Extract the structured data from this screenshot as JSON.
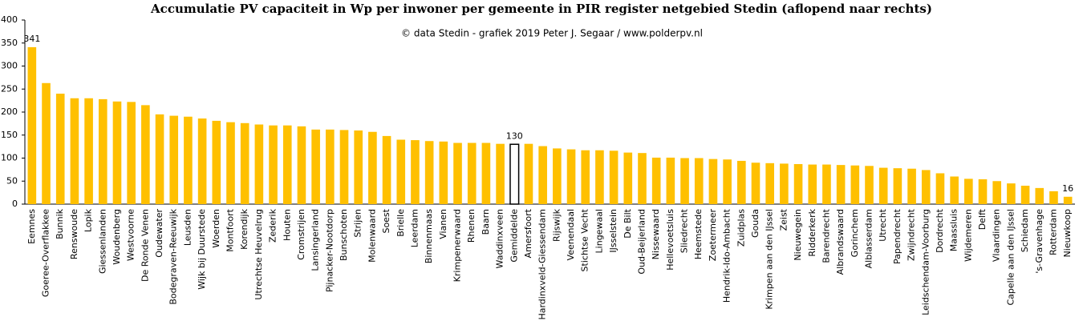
{
  "chart_data": {
    "type": "bar",
    "title": "Accumulatie  PV capaciteit  in  Wp per inwoner per gemeente in PIR register netgebied Stedin (aflopend naar rechts)",
    "subtitle": "© data Stedin - grafiek  2019 Peter J. Segaar / www.polderpv.nl",
    "categories": [
      "Eemnes",
      "Goeree-Overflakkee",
      "Bunnik",
      "Renswoude",
      "Lopik",
      "Giessenlanden",
      "Woudenberg",
      "Westvoorne",
      "De Ronde Venen",
      "Oudewater",
      "Bodegraven-Reeuwijk",
      "Leusden",
      "Wijk bij Duurstede",
      "Woerden",
      "Montfoort",
      "Korendijk",
      "Utrechtse Heuvelrug",
      "Zederik",
      "Houten",
      "Cromstrijen",
      "Lansingerland",
      "Pijnacker-Nootdorp",
      "Bunschoten",
      "Strijen",
      "Molenwaard",
      "Soest",
      "Brielle",
      "Leerdam",
      "Binnenmaas",
      "Vianen",
      "Krimpenerwaard",
      "Rhenen",
      "Baarn",
      "Waddinxveen",
      "Gemiddelde",
      "Amersfoort",
      "Hardinxveld-Giessendam",
      "Rijswijk",
      "Veenendaal",
      "Stichtse Vecht",
      "Lingewaal",
      "IJsselstein",
      "De Bilt",
      "Oud-Beijerland",
      "Nissewaard",
      "Hellevoetsluis",
      "Sliedrecht",
      "Heemstede",
      "Zoetermeer",
      "Hendrik-Ido-Ambacht",
      "Zuidplas",
      "Gouda",
      "Krimpen aan den IJssel",
      "Zeist",
      "Nieuwegein",
      "Ridderkerk",
      "Barendrecht",
      "Albrandswaard",
      "Gorinchem",
      "Alblasserdam",
      "Utrecht",
      "Papendrecht",
      "Zwijndrecht",
      "Leidschendam-Voorburg",
      "Dordrecht",
      "Maassluis",
      "Wijdemeren",
      "Delft",
      "Vlaardingen",
      "Capelle aan den IJssel",
      "Schiedam",
      "'s-Gravenhage",
      "Rotterdam",
      "Nieuwkoop"
    ],
    "values": [
      341,
      263,
      240,
      230,
      230,
      228,
      223,
      222,
      215,
      195,
      192,
      190,
      186,
      181,
      178,
      176,
      173,
      171,
      171,
      169,
      162,
      162,
      161,
      160,
      157,
      148,
      140,
      139,
      137,
      136,
      133,
      133,
      133,
      131,
      130,
      131,
      126,
      121,
      119,
      117,
      117,
      116,
      112,
      111,
      101,
      101,
      100,
      100,
      98,
      97,
      94,
      90,
      89,
      88,
      87,
      86,
      86,
      85,
      84,
      83,
      79,
      78,
      77,
      74,
      67,
      60,
      55,
      54,
      50,
      45,
      40,
      35,
      28,
      16
    ],
    "value_labels": [
      "341",
      null,
      null,
      null,
      null,
      null,
      null,
      null,
      null,
      null,
      null,
      null,
      null,
      null,
      null,
      null,
      null,
      null,
      null,
      null,
      null,
      null,
      null,
      null,
      null,
      null,
      null,
      null,
      null,
      null,
      null,
      null,
      null,
      null,
      "130",
      null,
      null,
      null,
      null,
      null,
      null,
      null,
      null,
      null,
      null,
      null,
      null,
      null,
      null,
      null,
      null,
      null,
      null,
      null,
      null,
      null,
      null,
      null,
      null,
      null,
      null,
      null,
      null,
      null,
      null,
      null,
      null,
      null,
      null,
      null,
      null,
      null,
      null,
      "16"
    ],
    "color": "#ffc000",
    "highlight": {
      "index_category": "Gemiddelde",
      "fill": "#ffffff",
      "edge": "#000000"
    },
    "ylim": [
      0,
      400
    ],
    "yticks": [
      0,
      50,
      100,
      150,
      200,
      250,
      300,
      350,
      400
    ],
    "grid": false
  }
}
